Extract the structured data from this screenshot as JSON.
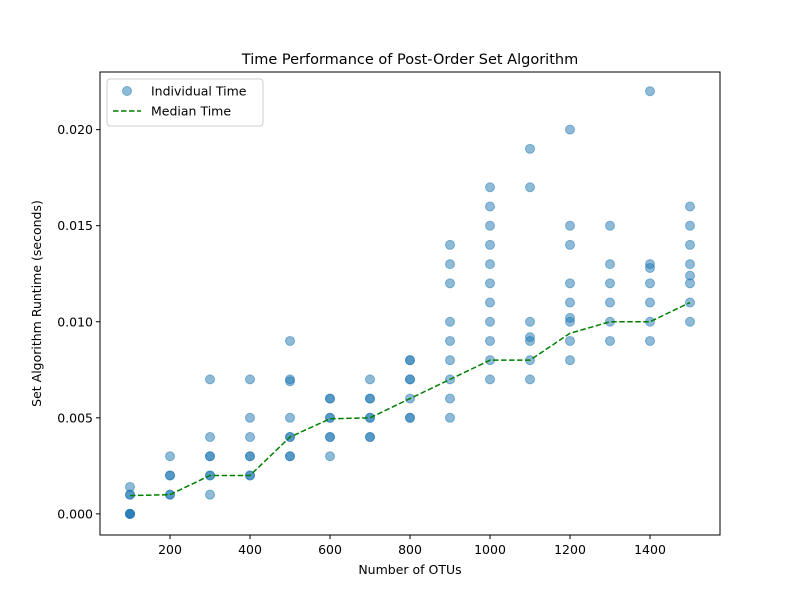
{
  "chart_data": {
    "type": "scatter",
    "title": "Time Performance of Post-Order Set Algorithm",
    "xlabel": "Number of OTUs",
    "ylabel": "Set Algorithm Runtime (seconds)",
    "xlim": [
      25,
      1575
    ],
    "ylim": [
      -0.0011,
      0.023
    ],
    "xticks": [
      200,
      400,
      600,
      800,
      1000,
      1200,
      1400
    ],
    "yticks": [
      0.0,
      0.005,
      0.01,
      0.015,
      0.02
    ],
    "ytick_labels": [
      "0.000",
      "0.005",
      "0.010",
      "0.015",
      "0.020"
    ],
    "grid": false,
    "legend_position": "top-left",
    "colors": {
      "scatter": "#1f77b4",
      "median": "#008000"
    },
    "series": [
      {
        "name": "Individual Time",
        "kind": "scatter",
        "points": [
          [
            100,
            0.0
          ],
          [
            100,
            0.0
          ],
          [
            100,
            0.0
          ],
          [
            100,
            0.0
          ],
          [
            100,
            0.001
          ],
          [
            100,
            0.001
          ],
          [
            100,
            0.0014
          ],
          [
            200,
            0.001
          ],
          [
            200,
            0.001
          ],
          [
            200,
            0.002
          ],
          [
            200,
            0.002
          ],
          [
            200,
            0.003
          ],
          [
            300,
            0.001
          ],
          [
            300,
            0.002
          ],
          [
            300,
            0.002
          ],
          [
            300,
            0.003
          ],
          [
            300,
            0.003
          ],
          [
            300,
            0.004
          ],
          [
            300,
            0.007
          ],
          [
            400,
            0.002
          ],
          [
            400,
            0.002
          ],
          [
            400,
            0.003
          ],
          [
            400,
            0.003
          ],
          [
            400,
            0.004
          ],
          [
            400,
            0.005
          ],
          [
            400,
            0.007
          ],
          [
            500,
            0.003
          ],
          [
            500,
            0.003
          ],
          [
            500,
            0.004
          ],
          [
            500,
            0.004
          ],
          [
            500,
            0.005
          ],
          [
            500,
            0.007
          ],
          [
            500,
            0.0069
          ],
          [
            500,
            0.009
          ],
          [
            600,
            0.003
          ],
          [
            600,
            0.004
          ],
          [
            600,
            0.004
          ],
          [
            600,
            0.005
          ],
          [
            600,
            0.005
          ],
          [
            600,
            0.006
          ],
          [
            600,
            0.006
          ],
          [
            700,
            0.004
          ],
          [
            700,
            0.004
          ],
          [
            700,
            0.005
          ],
          [
            700,
            0.005
          ],
          [
            700,
            0.006
          ],
          [
            700,
            0.006
          ],
          [
            700,
            0.007
          ],
          [
            800,
            0.005
          ],
          [
            800,
            0.005
          ],
          [
            800,
            0.006
          ],
          [
            800,
            0.007
          ],
          [
            800,
            0.007
          ],
          [
            800,
            0.008
          ],
          [
            800,
            0.008
          ],
          [
            900,
            0.005
          ],
          [
            900,
            0.006
          ],
          [
            900,
            0.007
          ],
          [
            900,
            0.008
          ],
          [
            900,
            0.009
          ],
          [
            900,
            0.01
          ],
          [
            900,
            0.012
          ],
          [
            900,
            0.013
          ],
          [
            900,
            0.014
          ],
          [
            1000,
            0.007
          ],
          [
            1000,
            0.008
          ],
          [
            1000,
            0.009
          ],
          [
            1000,
            0.01
          ],
          [
            1000,
            0.011
          ],
          [
            1000,
            0.012
          ],
          [
            1000,
            0.013
          ],
          [
            1000,
            0.014
          ],
          [
            1000,
            0.015
          ],
          [
            1000,
            0.016
          ],
          [
            1000,
            0.017
          ],
          [
            1100,
            0.007
          ],
          [
            1100,
            0.008
          ],
          [
            1100,
            0.009
          ],
          [
            1100,
            0.0092
          ],
          [
            1100,
            0.01
          ],
          [
            1100,
            0.017
          ],
          [
            1100,
            0.019
          ],
          [
            1200,
            0.008
          ],
          [
            1200,
            0.009
          ],
          [
            1200,
            0.01
          ],
          [
            1200,
            0.0102
          ],
          [
            1200,
            0.011
          ],
          [
            1200,
            0.012
          ],
          [
            1200,
            0.014
          ],
          [
            1200,
            0.015
          ],
          [
            1200,
            0.02
          ],
          [
            1300,
            0.009
          ],
          [
            1300,
            0.01
          ],
          [
            1300,
            0.011
          ],
          [
            1300,
            0.012
          ],
          [
            1300,
            0.013
          ],
          [
            1300,
            0.015
          ],
          [
            1400,
            0.009
          ],
          [
            1400,
            0.01
          ],
          [
            1400,
            0.011
          ],
          [
            1400,
            0.012
          ],
          [
            1400,
            0.0128
          ],
          [
            1400,
            0.013
          ],
          [
            1400,
            0.022
          ],
          [
            1500,
            0.01
          ],
          [
            1500,
            0.011
          ],
          [
            1500,
            0.012
          ],
          [
            1500,
            0.0124
          ],
          [
            1500,
            0.013
          ],
          [
            1500,
            0.014
          ],
          [
            1500,
            0.015
          ],
          [
            1500,
            0.016
          ]
        ]
      },
      {
        "name": "Median Time",
        "kind": "line",
        "x": [
          100,
          200,
          300,
          400,
          500,
          600,
          700,
          800,
          900,
          1000,
          1100,
          1200,
          1300,
          1400,
          1500
        ],
        "y": [
          0.00095,
          0.001,
          0.002,
          0.002,
          0.004,
          0.00495,
          0.005,
          0.006,
          0.007,
          0.008,
          0.008,
          0.0094,
          0.01,
          0.01,
          0.011
        ]
      }
    ]
  }
}
